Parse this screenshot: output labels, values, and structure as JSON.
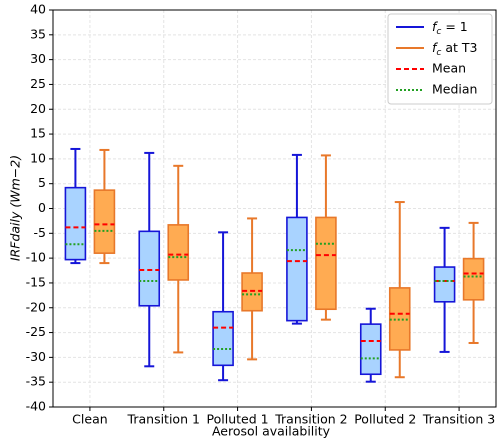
{
  "chart_data": {
    "type": "box",
    "xlabel": "Aerosol availability",
    "ylabel": "IRFdaily (Wm−2)",
    "categories": [
      "Clean",
      "Transition 1",
      "Polluted 1",
      "Transition 2",
      "Polluted 2",
      "Transition 3"
    ],
    "ylim": [
      -40,
      40
    ],
    "yticks": [
      -40,
      -35,
      -30,
      -25,
      -20,
      -15,
      -10,
      -5,
      0,
      5,
      10,
      15,
      20,
      25,
      30,
      35,
      40
    ],
    "grid": true,
    "legend": "upper right",
    "mean_style": {
      "name": "Mean",
      "color": "#ff0000"
    },
    "median_style": {
      "name": "Median",
      "color": "#22a022"
    },
    "series": [
      {
        "name": "fc = 1",
        "color": "#1515d8",
        "fill": "#a9d3ff",
        "boxes": [
          {
            "whislo": -11,
            "q1": -10.3,
            "median": -7.2,
            "mean": -3.8,
            "q3": 4.2,
            "whishi": 12
          },
          {
            "whislo": -31.8,
            "q1": -19.6,
            "median": -14.6,
            "mean": -12.4,
            "q3": -4.6,
            "whishi": 11.2
          },
          {
            "whislo": -34.6,
            "q1": -31.6,
            "median": -28.3,
            "mean": -24,
            "q3": -20.8,
            "whishi": -4.8
          },
          {
            "whislo": -23.2,
            "q1": -22.6,
            "median": -8.4,
            "mean": -10.6,
            "q3": -1.8,
            "whishi": 10.8
          },
          {
            "whislo": -34.9,
            "q1": -33.4,
            "median": -30.2,
            "mean": -26.7,
            "q3": -23.3,
            "whishi": -20.2
          },
          {
            "whislo": -28.9,
            "q1": -18.8,
            "median": -14.6,
            "mean": -14.6,
            "q3": -11.8,
            "whishi": -3.9
          }
        ]
      },
      {
        "name": "fc at T3",
        "color": "#e8782a",
        "fill": "#ffab52",
        "boxes": [
          {
            "whislo": -11,
            "q1": -9,
            "median": -4.5,
            "mean": -3.2,
            "q3": 3.7,
            "whishi": 11.8
          },
          {
            "whislo": -29,
            "q1": -14.4,
            "median": -9.8,
            "mean": -9.3,
            "q3": -3.3,
            "whishi": 8.6
          },
          {
            "whislo": -30.4,
            "q1": -20.6,
            "median": -17.3,
            "mean": -16.6,
            "q3": -13,
            "whishi": -2
          },
          {
            "whislo": -22.4,
            "q1": -20.3,
            "median": -7.1,
            "mean": -9.4,
            "q3": -1.8,
            "whishi": 10.7
          },
          {
            "whislo": -34,
            "q1": -28.5,
            "median": -22.4,
            "mean": -21.2,
            "q3": -16,
            "whishi": 1.3
          },
          {
            "whislo": -27.1,
            "q1": -18.4,
            "median": -13.7,
            "mean": -13.1,
            "q3": -10.1,
            "whishi": -2.9
          }
        ]
      }
    ]
  }
}
